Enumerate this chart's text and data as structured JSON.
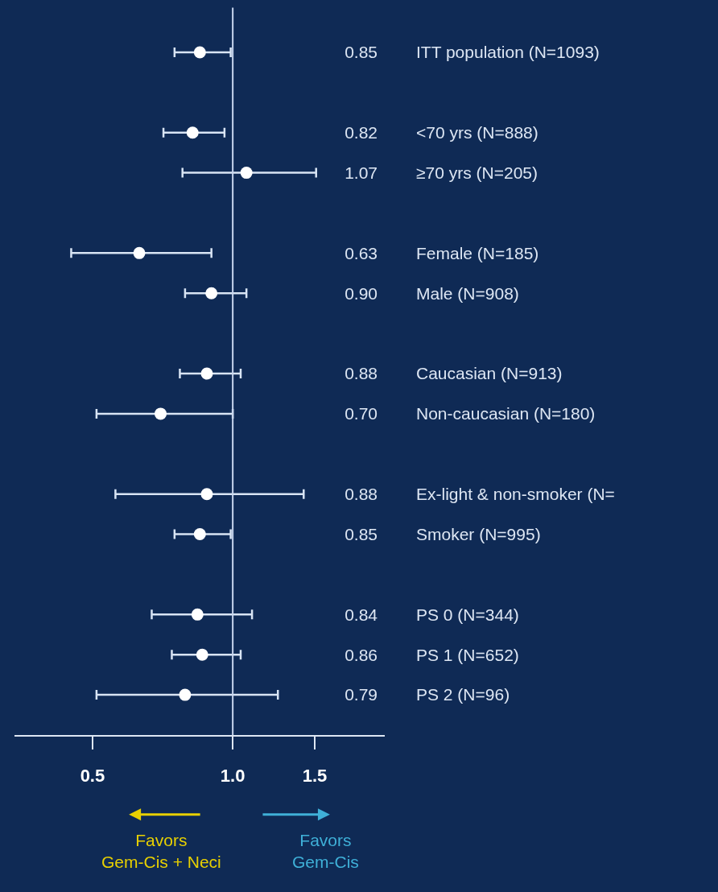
{
  "chart_data": {
    "type": "scatter",
    "orientation": "horizontal",
    "log": "x",
    "marker": "circle",
    "grid": false,
    "color": "#ffffff",
    "categories": [
      "ITT population (N=1093)",
      null,
      "<70 yrs (N=888)",
      "≥70 yrs (N=205)",
      null,
      "Female (N=185)",
      "Male (N=908)",
      null,
      "Caucasian (N=913)",
      "Non-caucasian (N=180)",
      null,
      "Ex-light & non-smoker (N=",
      "Smoker (N=995)",
      null,
      "PS 0 (N=344)",
      "PS 1 (N=652)",
      "PS 2 (N=96)"
    ],
    "values": [
      0.85,
      null,
      0.82,
      1.07,
      null,
      0.63,
      0.9,
      null,
      0.88,
      0.7,
      null,
      0.88,
      0.85,
      null,
      0.84,
      0.86,
      0.79
    ],
    "y2_categories": [
      "0.85",
      null,
      "0.82",
      "1.07",
      null,
      "0.63",
      "0.90",
      null,
      "0.88",
      "0.70",
      null,
      "0.88",
      "0.85",
      null,
      "0.84",
      "0.86",
      "0.79"
    ],
    "errors": [
      [
        0.75,
        0.99
      ],
      null,
      [
        0.71,
        0.96
      ],
      [
        0.78,
        1.51
      ],
      null,
      [
        0.45,
        0.9
      ],
      [
        0.79,
        1.07
      ],
      null,
      [
        0.77,
        1.04
      ],
      [
        0.51,
        1.0
      ],
      null,
      [
        0.56,
        1.42
      ],
      [
        0.75,
        0.99
      ],
      null,
      [
        0.67,
        1.1
      ],
      [
        0.74,
        1.04
      ],
      [
        0.51,
        1.25
      ]
    ],
    "xlim": [
      0.34,
      2.12
    ],
    "xticks": [
      0.5,
      {
        "value": 1,
        "label": "1.0"
      },
      1.5
    ],
    "ref_lines": [
      {
        "axis": "x",
        "value": 1,
        "color": "#c8d6ee"
      }
    ],
    "annotations": [
      "Favors\nGem-Cis + Neci",
      "Favors\nGem-Cis"
    ]
  }
}
